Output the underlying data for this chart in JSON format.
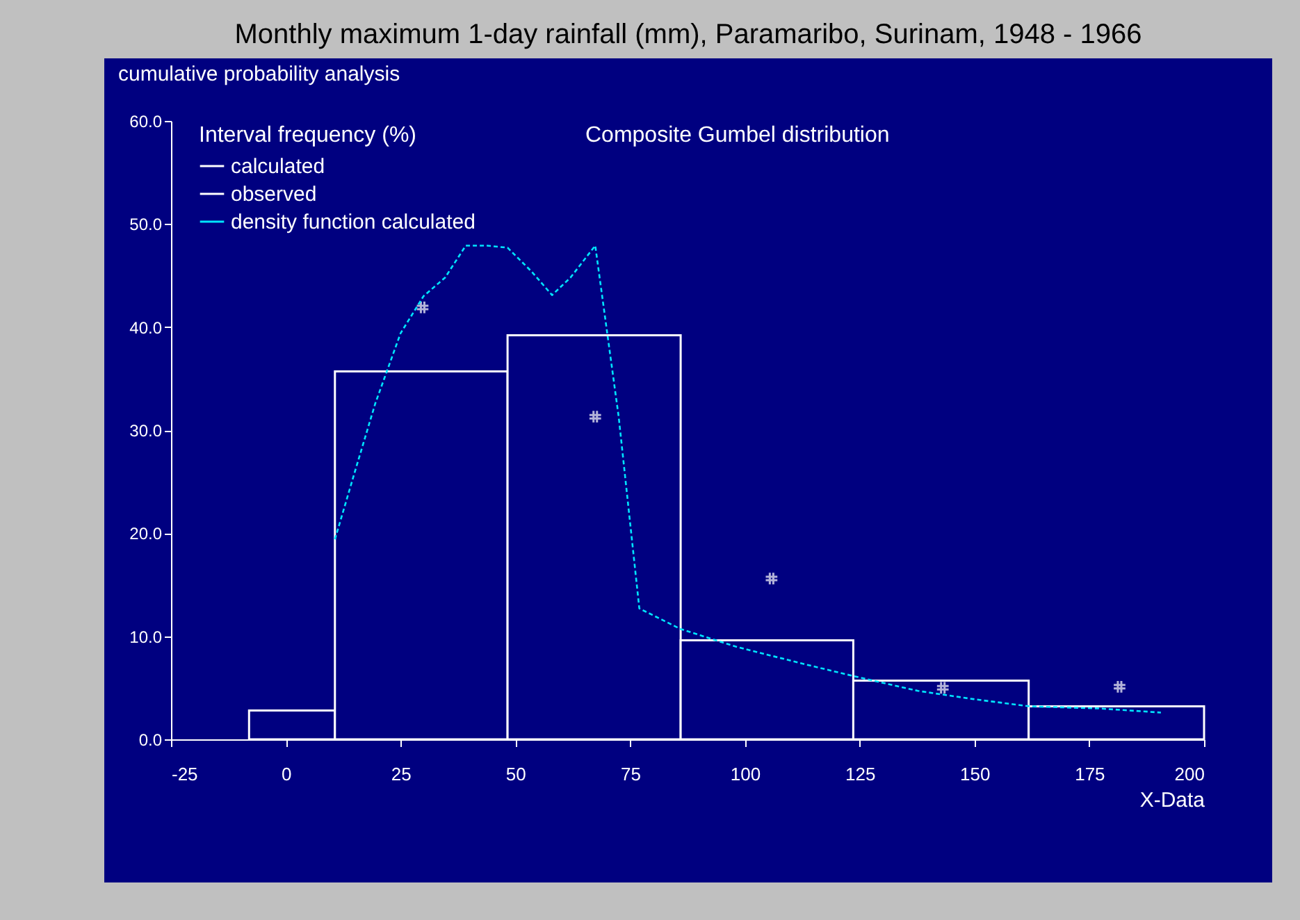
{
  "chart_data": {
    "type": "histogram",
    "title": "Monthly maximum 1-day rainfall (mm), Paramaribo, Surinam, 1948 - 1966",
    "subtitle": "cumulative probability analysis",
    "xlabel": "X-Data",
    "legend_title": "Interval frequency (%)",
    "legend": "top left",
    "annotations": [
      "Composite Gumbel distribution"
    ],
    "xlim": [
      -25,
      200
    ],
    "xticks": [
      -25,
      0,
      25,
      50,
      75,
      100,
      125,
      150,
      175,
      200
    ],
    "ylim": [
      0,
      60
    ],
    "yticks": [
      {
        "value": 0,
        "label": "0.0"
      },
      {
        "value": 10,
        "label": "10.0"
      },
      {
        "value": 20,
        "label": "20.0"
      },
      {
        "value": 30,
        "label": "30.0"
      },
      {
        "value": 40,
        "label": "40.0"
      },
      {
        "value": 50,
        "label": "50.0"
      },
      {
        "value": 60,
        "label": "60.0"
      }
    ],
    "grid": false,
    "series": [
      {
        "name": "calculated",
        "color": "#ffffff",
        "bins": [
          -8,
          10.7,
          48.3,
          86,
          123.6,
          161.8,
          200
        ],
        "values": [
          2.8,
          35.7,
          39.2,
          9.6,
          5.7,
          3.2
        ]
      },
      {
        "type": "scatter",
        "name": "observed",
        "color": "#ffffff",
        "marker": "cross",
        "x": [
          29.8,
          67.4,
          105.8,
          143.1,
          181.6
        ],
        "values": [
          41.9,
          31.3,
          15.6,
          5.0,
          5.1
        ]
      },
      {
        "type": "line",
        "name": "density function calculated",
        "color": "#00e5ff",
        "line_style": "dashed",
        "x": [
          10.7,
          15,
          19.5,
          25,
          30,
          34.7,
          39.2,
          43.8,
          48.3,
          53.5,
          58,
          62,
          67.4,
          72.5,
          77,
          86,
          98,
          112,
          124,
          137.7,
          149.8,
          162,
          177,
          190.6
        ],
        "values": [
          19.4,
          25.9,
          32.6,
          39.4,
          43,
          44.8,
          47.9,
          47.9,
          47.7,
          45.4,
          43.1,
          44.8,
          47.9,
          31.3,
          12.7,
          10.7,
          9.0,
          7.4,
          6.1,
          4.7,
          3.9,
          3.2,
          3.0,
          2.6
        ]
      }
    ]
  }
}
